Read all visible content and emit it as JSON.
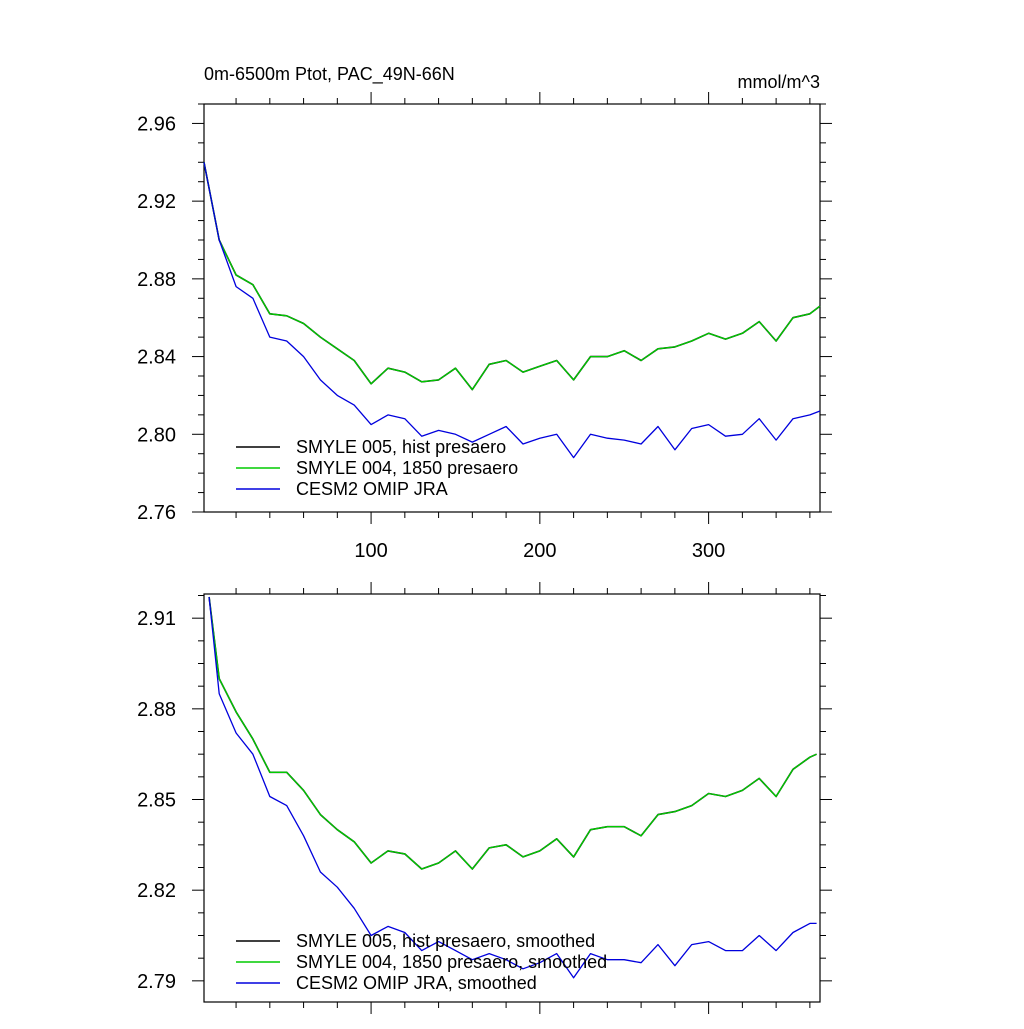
{
  "chart_data": [
    {
      "type": "line",
      "title": "0m-6500m Ptot, PAC_49N-66N",
      "units": "mmol/m^3",
      "xlim": [
        1,
        366
      ],
      "ylim": [
        2.76,
        2.97
      ],
      "x_ticks": [
        100,
        200,
        300
      ],
      "x_tick_labels": [
        "100",
        "200",
        "300"
      ],
      "y_ticks": [
        2.76,
        2.8,
        2.84,
        2.88,
        2.92,
        2.96
      ],
      "y_tick_labels": [
        "2.76",
        "2.80",
        "2.84",
        "2.88",
        "2.92",
        "2.96"
      ],
      "legend_position": "bottom-left",
      "series": [
        {
          "name": "SMYLE 005, hist presaero",
          "color": "#000000",
          "x": [
            1,
            10,
            20,
            30,
            40,
            50,
            60,
            70,
            80,
            90,
            100,
            110,
            120,
            130,
            140,
            150,
            160,
            170,
            180,
            190,
            200,
            210,
            220,
            230,
            240,
            250,
            260,
            270,
            280,
            290,
            300,
            310,
            320,
            330,
            340,
            350,
            360,
            366
          ],
          "y": [
            2.94,
            2.9,
            2.882,
            2.877,
            2.862,
            2.861,
            2.857,
            2.85,
            2.844,
            2.838,
            2.826,
            2.834,
            2.832,
            2.827,
            2.828,
            2.834,
            2.823,
            2.836,
            2.838,
            2.832,
            2.835,
            2.838,
            2.828,
            2.84,
            2.84,
            2.843,
            2.838,
            2.844,
            2.845,
            2.848,
            2.852,
            2.849,
            2.852,
            2.858,
            2.848,
            2.86,
            2.862,
            2.866
          ]
        },
        {
          "name": "SMYLE 004, 1850 presaero",
          "color": "#00cc00",
          "x": [
            1,
            10,
            20,
            30,
            40,
            50,
            60,
            70,
            80,
            90,
            100,
            110,
            120,
            130,
            140,
            150,
            160,
            170,
            180,
            190,
            200,
            210,
            220,
            230,
            240,
            250,
            260,
            270,
            280,
            290,
            300,
            310,
            320,
            330,
            340,
            350,
            360,
            366
          ],
          "y": [
            2.94,
            2.9,
            2.882,
            2.877,
            2.862,
            2.861,
            2.857,
            2.85,
            2.844,
            2.838,
            2.826,
            2.834,
            2.832,
            2.827,
            2.828,
            2.834,
            2.823,
            2.836,
            2.838,
            2.832,
            2.835,
            2.838,
            2.828,
            2.84,
            2.84,
            2.843,
            2.838,
            2.844,
            2.845,
            2.848,
            2.852,
            2.849,
            2.852,
            2.858,
            2.848,
            2.86,
            2.862,
            2.866
          ]
        },
        {
          "name": "CESM2 OMIP JRA",
          "color": "#0000dd",
          "x": [
            1,
            10,
            20,
            30,
            40,
            50,
            60,
            70,
            80,
            90,
            100,
            110,
            120,
            130,
            140,
            150,
            160,
            170,
            180,
            190,
            200,
            210,
            220,
            230,
            240,
            250,
            260,
            270,
            280,
            290,
            300,
            310,
            320,
            330,
            340,
            350,
            360,
            366
          ],
          "y": [
            2.94,
            2.9,
            2.876,
            2.87,
            2.85,
            2.848,
            2.84,
            2.828,
            2.82,
            2.815,
            2.805,
            2.81,
            2.808,
            2.799,
            2.802,
            2.8,
            2.796,
            2.8,
            2.804,
            2.795,
            2.798,
            2.8,
            2.788,
            2.8,
            2.798,
            2.797,
            2.795,
            2.804,
            2.792,
            2.803,
            2.805,
            2.799,
            2.8,
            2.808,
            2.797,
            2.808,
            2.81,
            2.812
          ]
        }
      ]
    },
    {
      "type": "line",
      "title": "",
      "xlim": [
        1,
        366
      ],
      "ylim": [
        2.783,
        2.918
      ],
      "x_ticks": [
        100,
        200,
        300
      ],
      "x_tick_labels": [
        "",
        "",
        ""
      ],
      "y_ticks": [
        2.79,
        2.82,
        2.85,
        2.88,
        2.91
      ],
      "y_tick_labels": [
        "2.79",
        "2.82",
        "2.85",
        "2.88",
        "2.91"
      ],
      "legend_position": "bottom-left",
      "series": [
        {
          "name": "SMYLE 005, hist presaero, smoothed",
          "color": "#000000",
          "x": [
            4,
            10,
            20,
            30,
            40,
            50,
            60,
            70,
            80,
            90,
            100,
            110,
            120,
            130,
            140,
            150,
            160,
            170,
            180,
            190,
            200,
            210,
            220,
            230,
            240,
            250,
            260,
            270,
            280,
            290,
            300,
            310,
            320,
            330,
            340,
            350,
            360,
            364
          ],
          "y": [
            2.917,
            2.89,
            2.879,
            2.87,
            2.859,
            2.859,
            2.853,
            2.845,
            2.84,
            2.836,
            2.829,
            2.833,
            2.832,
            2.827,
            2.829,
            2.833,
            2.827,
            2.834,
            2.835,
            2.831,
            2.833,
            2.837,
            2.831,
            2.84,
            2.841,
            2.841,
            2.838,
            2.845,
            2.846,
            2.848,
            2.852,
            2.851,
            2.853,
            2.857,
            2.851,
            2.86,
            2.864,
            2.865
          ]
        },
        {
          "name": "SMYLE 004, 1850 presaero, smoothed",
          "color": "#00cc00",
          "x": [
            4,
            10,
            20,
            30,
            40,
            50,
            60,
            70,
            80,
            90,
            100,
            110,
            120,
            130,
            140,
            150,
            160,
            170,
            180,
            190,
            200,
            210,
            220,
            230,
            240,
            250,
            260,
            270,
            280,
            290,
            300,
            310,
            320,
            330,
            340,
            350,
            360,
            364
          ],
          "y": [
            2.917,
            2.89,
            2.879,
            2.87,
            2.859,
            2.859,
            2.853,
            2.845,
            2.84,
            2.836,
            2.829,
            2.833,
            2.832,
            2.827,
            2.829,
            2.833,
            2.827,
            2.834,
            2.835,
            2.831,
            2.833,
            2.837,
            2.831,
            2.84,
            2.841,
            2.841,
            2.838,
            2.845,
            2.846,
            2.848,
            2.852,
            2.851,
            2.853,
            2.857,
            2.851,
            2.86,
            2.864,
            2.865
          ]
        },
        {
          "name": "CESM2 OMIP JRA, smoothed",
          "color": "#0000dd",
          "x": [
            4,
            10,
            20,
            30,
            40,
            50,
            60,
            70,
            80,
            90,
            100,
            110,
            120,
            130,
            140,
            150,
            160,
            170,
            180,
            190,
            200,
            210,
            220,
            230,
            240,
            250,
            260,
            270,
            280,
            290,
            300,
            310,
            320,
            330,
            340,
            350,
            360,
            364
          ],
          "y": [
            2.917,
            2.885,
            2.872,
            2.865,
            2.851,
            2.848,
            2.838,
            2.826,
            2.821,
            2.814,
            2.805,
            2.808,
            2.806,
            2.8,
            2.803,
            2.8,
            2.797,
            2.799,
            2.797,
            2.794,
            2.796,
            2.799,
            2.791,
            2.799,
            2.797,
            2.797,
            2.796,
            2.802,
            2.795,
            2.802,
            2.803,
            2.8,
            2.8,
            2.805,
            2.8,
            2.806,
            2.809,
            2.809
          ]
        }
      ]
    }
  ]
}
